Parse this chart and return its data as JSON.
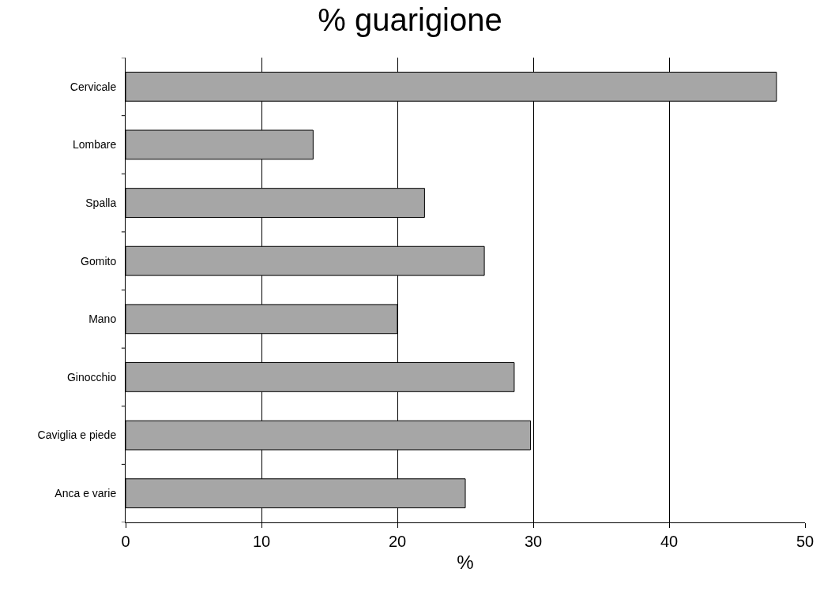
{
  "chart_data": {
    "type": "bar",
    "orientation": "horizontal",
    "title": "% guarigione",
    "xlabel": "%",
    "categories": [
      "Cervicale",
      "Lombare",
      "Spalla",
      "Gomito",
      "Mano",
      "Ginocchio",
      "Caviglia e piede",
      "Anca e varie"
    ],
    "values": [
      47.9,
      13.8,
      22.0,
      26.4,
      20.0,
      28.6,
      29.8,
      25.0
    ],
    "color": "#a6a6a6",
    "xlim": [
      0,
      50
    ],
    "xticks": [
      0,
      10,
      20,
      30,
      40,
      50
    ],
    "grid": "x"
  }
}
